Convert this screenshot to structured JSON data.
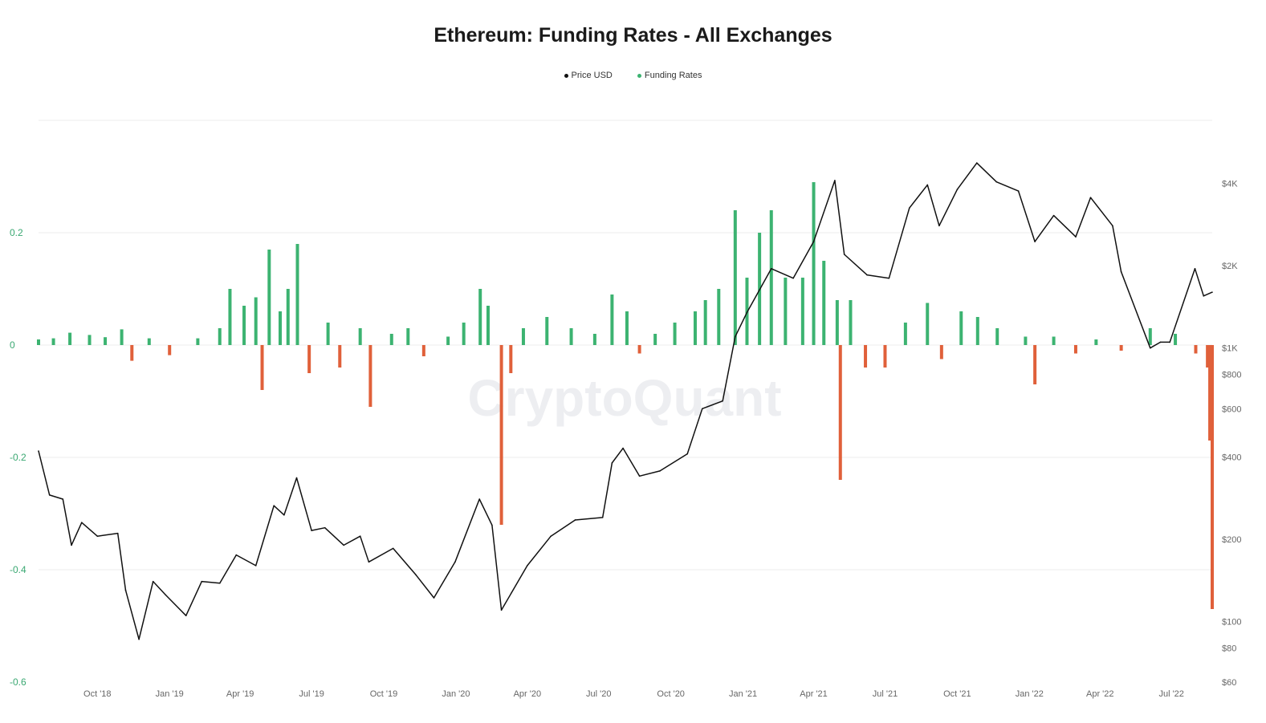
{
  "chart_data": {
    "type": "bar",
    "title": "Ethereum: Funding Rates - All Exchanges",
    "watermark": "CryptoQuant",
    "legend": {
      "placement": "top-center",
      "items": [
        {
          "name": "Price USD",
          "color": "#111111"
        },
        {
          "name": "Funding Rates",
          "color": "#3cb371"
        }
      ]
    },
    "x_ticks": [
      "Oct '18",
      "Jan '19",
      "Apr '19",
      "Jul '19",
      "Oct '19",
      "Jan '20",
      "Apr '20",
      "Jul '20",
      "Oct '20",
      "Jan '21",
      "Apr '21",
      "Jul '21",
      "Oct '21",
      "Jan '22",
      "Apr '22",
      "Jul '22"
    ],
    "x_range": [
      "2018-08-01",
      "2022-09-05"
    ],
    "y_left": {
      "ticks": [
        "0.2",
        "0",
        "-0.2",
        "-0.4",
        "-0.6"
      ],
      "range": [
        -0.6,
        0.4
      ]
    },
    "y_right": {
      "scale": "log",
      "ticks": [
        "$4K",
        "$2K",
        "$1K",
        "$800",
        "$600",
        "$400",
        "$200",
        "$100",
        "$80",
        "$60"
      ],
      "range": [
        60,
        6800
      ]
    },
    "grid": "horizontal",
    "colors": {
      "positive": "#3cb371",
      "negative": "#e0603a",
      "price": "#111111",
      "grid": "#ececec"
    },
    "series": [
      {
        "name": "Price USD",
        "axis": "right",
        "points": [
          [
            "2018-08-01",
            420
          ],
          [
            "2018-08-15",
            290
          ],
          [
            "2018-09-01",
            280
          ],
          [
            "2018-09-12",
            190
          ],
          [
            "2018-09-25",
            230
          ],
          [
            "2018-10-15",
            205
          ],
          [
            "2018-11-10",
            210
          ],
          [
            "2018-11-20",
            130
          ],
          [
            "2018-12-07",
            86
          ],
          [
            "2018-12-25",
            140
          ],
          [
            "2019-01-10",
            125
          ],
          [
            "2019-02-05",
            105
          ],
          [
            "2019-02-25",
            140
          ],
          [
            "2019-03-20",
            138
          ],
          [
            "2019-04-10",
            175
          ],
          [
            "2019-05-05",
            160
          ],
          [
            "2019-05-28",
            265
          ],
          [
            "2019-06-10",
            245
          ],
          [
            "2019-06-26",
            335
          ],
          [
            "2019-07-15",
            215
          ],
          [
            "2019-08-01",
            220
          ],
          [
            "2019-08-25",
            190
          ],
          [
            "2019-09-15",
            205
          ],
          [
            "2019-09-26",
            165
          ],
          [
            "2019-10-27",
            185
          ],
          [
            "2019-11-25",
            148
          ],
          [
            "2019-12-18",
            122
          ],
          [
            "2020-01-14",
            165
          ],
          [
            "2020-02-14",
            280
          ],
          [
            "2020-03-01",
            225
          ],
          [
            "2020-03-13",
            110
          ],
          [
            "2020-04-15",
            160
          ],
          [
            "2020-05-15",
            205
          ],
          [
            "2020-06-15",
            235
          ],
          [
            "2020-07-20",
            240
          ],
          [
            "2020-08-01",
            380
          ],
          [
            "2020-08-15",
            430
          ],
          [
            "2020-09-05",
            340
          ],
          [
            "2020-10-01",
            355
          ],
          [
            "2020-11-05",
            410
          ],
          [
            "2020-11-24",
            600
          ],
          [
            "2020-12-20",
            640
          ],
          [
            "2021-01-05",
            1100
          ],
          [
            "2021-01-20",
            1350
          ],
          [
            "2021-02-20",
            1950
          ],
          [
            "2021-03-20",
            1800
          ],
          [
            "2021-04-15",
            2450
          ],
          [
            "2021-05-12",
            4100
          ],
          [
            "2021-05-24",
            2200
          ],
          [
            "2021-06-22",
            1850
          ],
          [
            "2021-07-20",
            1800
          ],
          [
            "2021-08-15",
            3250
          ],
          [
            "2021-09-07",
            3950
          ],
          [
            "2021-09-22",
            2800
          ],
          [
            "2021-10-15",
            3800
          ],
          [
            "2021-11-09",
            4750
          ],
          [
            "2021-12-04",
            4050
          ],
          [
            "2022-01-01",
            3750
          ],
          [
            "2022-01-22",
            2450
          ],
          [
            "2022-02-15",
            3050
          ],
          [
            "2022-03-15",
            2550
          ],
          [
            "2022-04-03",
            3550
          ],
          [
            "2022-05-01",
            2800
          ],
          [
            "2022-05-12",
            1900
          ],
          [
            "2022-06-18",
            1000
          ],
          [
            "2022-07-01",
            1050
          ],
          [
            "2022-07-13",
            1050
          ],
          [
            "2022-08-14",
            1950
          ],
          [
            "2022-08-25",
            1550
          ],
          [
            "2022-09-05",
            1600
          ]
        ]
      },
      {
        "name": "Funding Rates",
        "axis": "left",
        "points": [
          [
            "2018-08-01",
            0.01
          ],
          [
            "2018-08-20",
            0.012
          ],
          [
            "2018-09-10",
            0.022
          ],
          [
            "2018-10-05",
            0.018
          ],
          [
            "2018-10-25",
            0.014
          ],
          [
            "2018-11-15",
            0.028
          ],
          [
            "2018-11-28",
            -0.028
          ],
          [
            "2018-12-20",
            0.012
          ],
          [
            "2019-01-15",
            -0.018
          ],
          [
            "2019-02-20",
            0.012
          ],
          [
            "2019-03-20",
            0.03
          ],
          [
            "2019-04-02",
            0.1
          ],
          [
            "2019-04-20",
            0.07
          ],
          [
            "2019-05-05",
            0.085
          ],
          [
            "2019-05-13",
            -0.08
          ],
          [
            "2019-05-22",
            0.17
          ],
          [
            "2019-06-05",
            0.06
          ],
          [
            "2019-06-15",
            0.1
          ],
          [
            "2019-06-27",
            0.18
          ],
          [
            "2019-07-12",
            -0.05
          ],
          [
            "2019-08-05",
            0.04
          ],
          [
            "2019-08-20",
            -0.04
          ],
          [
            "2019-09-15",
            0.03
          ],
          [
            "2019-09-28",
            -0.11
          ],
          [
            "2019-10-25",
            0.02
          ],
          [
            "2019-11-15",
            0.03
          ],
          [
            "2019-12-05",
            -0.02
          ],
          [
            "2020-01-05",
            0.015
          ],
          [
            "2020-01-25",
            0.04
          ],
          [
            "2020-02-15",
            0.1
          ],
          [
            "2020-02-25",
            0.07
          ],
          [
            "2020-03-13",
            -0.32
          ],
          [
            "2020-03-25",
            -0.05
          ],
          [
            "2020-04-10",
            0.03
          ],
          [
            "2020-05-10",
            0.05
          ],
          [
            "2020-06-10",
            0.03
          ],
          [
            "2020-07-10",
            0.02
          ],
          [
            "2020-08-01",
            0.09
          ],
          [
            "2020-08-20",
            0.06
          ],
          [
            "2020-09-05",
            -0.015
          ],
          [
            "2020-09-25",
            0.02
          ],
          [
            "2020-10-20",
            0.04
          ],
          [
            "2020-11-15",
            0.06
          ],
          [
            "2020-11-28",
            0.08
          ],
          [
            "2020-12-15",
            0.1
          ],
          [
            "2021-01-05",
            0.24
          ],
          [
            "2021-01-20",
            0.12
          ],
          [
            "2021-02-05",
            0.2
          ],
          [
            "2021-02-20",
            0.24
          ],
          [
            "2021-03-10",
            0.12
          ],
          [
            "2021-04-01",
            0.12
          ],
          [
            "2021-04-15",
            0.29
          ],
          [
            "2021-04-28",
            0.15
          ],
          [
            "2021-05-15",
            0.08
          ],
          [
            "2021-05-19",
            -0.24
          ],
          [
            "2021-06-01",
            0.08
          ],
          [
            "2021-06-20",
            -0.04
          ],
          [
            "2021-07-15",
            -0.04
          ],
          [
            "2021-08-10",
            0.04
          ],
          [
            "2021-09-07",
            0.075
          ],
          [
            "2021-09-25",
            -0.025
          ],
          [
            "2021-10-20",
            0.06
          ],
          [
            "2021-11-10",
            0.05
          ],
          [
            "2021-12-05",
            0.03
          ],
          [
            "2022-01-10",
            0.015
          ],
          [
            "2022-01-22",
            -0.07
          ],
          [
            "2022-02-15",
            0.015
          ],
          [
            "2022-03-15",
            -0.015
          ],
          [
            "2022-04-10",
            0.01
          ],
          [
            "2022-05-12",
            -0.01
          ],
          [
            "2022-06-18",
            0.03
          ],
          [
            "2022-07-20",
            0.02
          ],
          [
            "2022-08-15",
            -0.015
          ],
          [
            "2022-08-30",
            -0.04
          ],
          [
            "2022-09-02",
            -0.17
          ],
          [
            "2022-09-05",
            -0.47
          ]
        ]
      }
    ]
  }
}
